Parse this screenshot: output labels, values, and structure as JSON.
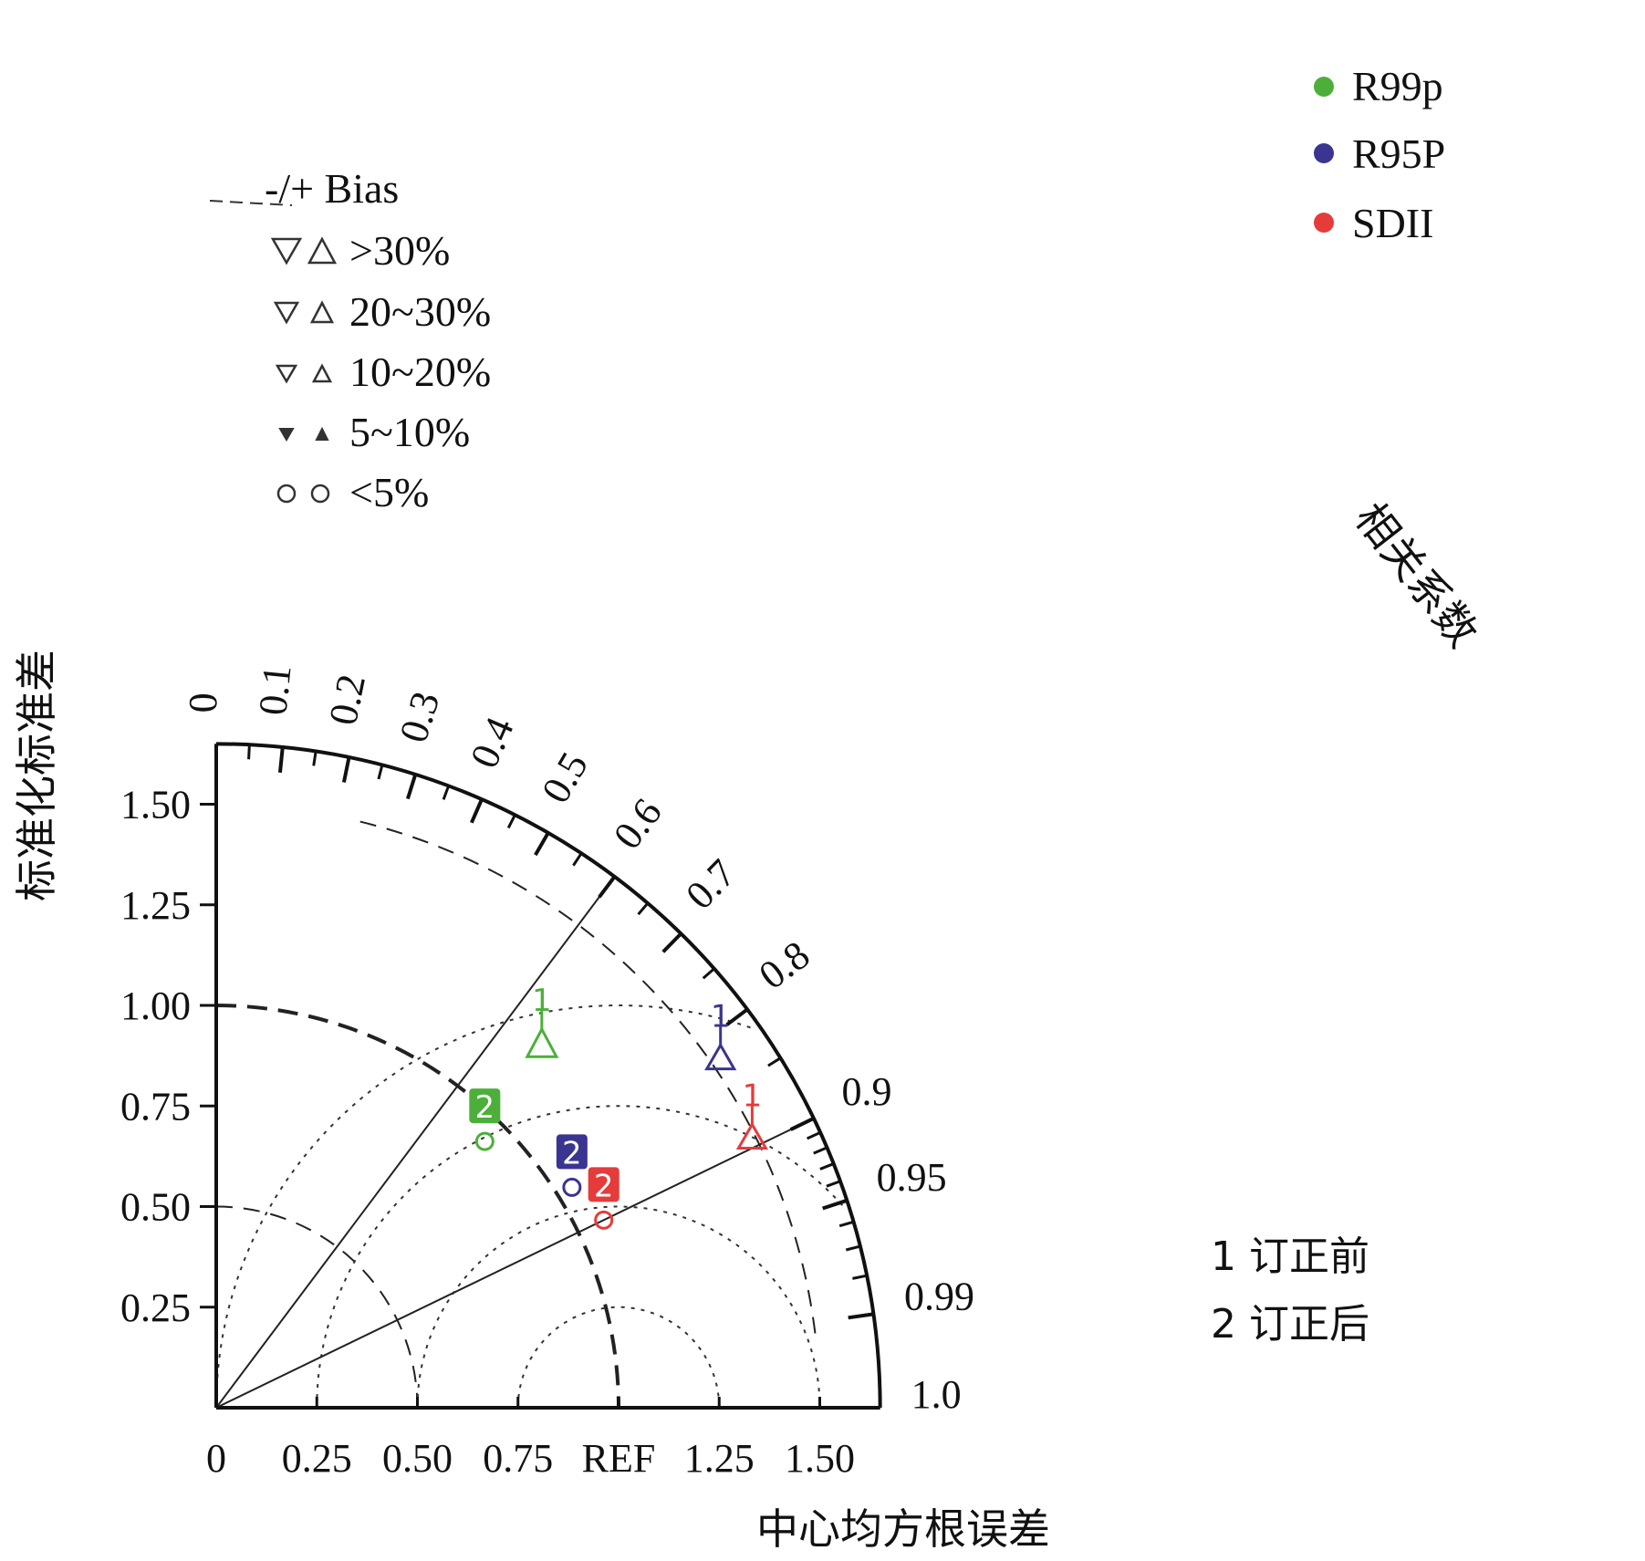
{
  "chart_data": {
    "type": "taylor",
    "x_axis": {
      "title": "中心均方根误差",
      "ticks": [
        0,
        0.25,
        0.5,
        0.75,
        1.0,
        1.25,
        1.5
      ],
      "tick_labels": [
        "0",
        "0.25",
        "0.50",
        "0.75",
        "REF",
        "1.25",
        "1.50"
      ]
    },
    "y_axis": {
      "title": "标准化标准差",
      "ticks": [
        0.25,
        0.5,
        0.75,
        1.0,
        1.25,
        1.5
      ],
      "tick_labels": [
        "0.25",
        "0.50",
        "0.75",
        "1.00",
        "1.25",
        "1.50"
      ]
    },
    "std_max": 1.65,
    "correlation": {
      "title": "相关系数",
      "labels": [
        "0",
        "0.1",
        "0.2",
        "0.3",
        "0.4",
        "0.5",
        "0.6",
        "0.7",
        "0.8",
        "0.9",
        "0.95",
        "0.99",
        "1.0"
      ],
      "minor_ticks": [
        0.05,
        0.15,
        0.25,
        0.35,
        0.45,
        0.55,
        0.65,
        0.75,
        0.85,
        0.91,
        0.92,
        0.93,
        0.94,
        0.96,
        0.97,
        0.98
      ]
    },
    "reference_std": 1.0,
    "dashed_std_arcs": [
      0.5,
      1.0,
      1.5
    ],
    "crmse_circles": [
      0.25,
      0.5,
      0.75,
      1.0
    ],
    "corr_lines": [
      0.6,
      0.9
    ],
    "series": [
      {
        "name": "R99p",
        "color": "#4caf3a",
        "points": [
          {
            "label": "1",
            "std": 1.19,
            "corr": 0.68,
            "marker": "triangle-up-large"
          },
          {
            "label": "2",
            "std": 0.94,
            "corr": 0.71,
            "marker": "circle"
          }
        ]
      },
      {
        "name": "R95P",
        "color": "#3a3590",
        "points": [
          {
            "label": "1",
            "std": 1.51,
            "corr": 0.83,
            "marker": "triangle-up-medium"
          },
          {
            "label": "2",
            "std": 1.04,
            "corr": 0.85,
            "marker": "circle"
          }
        ]
      },
      {
        "name": "SDII",
        "color": "#e53b3b",
        "points": [
          {
            "label": "1",
            "std": 1.48,
            "corr": 0.9,
            "marker": "triangle-up-medium"
          },
          {
            "label": "2",
            "std": 1.07,
            "corr": 0.9,
            "marker": "circle"
          }
        ]
      }
    ],
    "bias_legend": {
      "title": "-/+ Bias",
      "entries": [
        ">30%",
        "20~30%",
        "10~20%",
        "5~10%",
        "<5%"
      ]
    },
    "notes": [
      "1 订正前",
      "2 订正后"
    ]
  }
}
